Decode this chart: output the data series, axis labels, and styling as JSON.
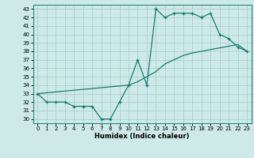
{
  "xlabel": "Humidex (Indice chaleur)",
  "xlim": [
    -0.5,
    23.5
  ],
  "ylim": [
    29.5,
    43.5
  ],
  "yticks": [
    30,
    31,
    32,
    33,
    34,
    35,
    36,
    37,
    38,
    39,
    40,
    41,
    42,
    43
  ],
  "xticks": [
    0,
    1,
    2,
    3,
    4,
    5,
    6,
    7,
    8,
    9,
    10,
    11,
    12,
    13,
    14,
    15,
    16,
    17,
    18,
    19,
    20,
    21,
    22,
    23
  ],
  "line_color": "#1a7a6e",
  "bg_color": "#ceeae8",
  "grid_color": "#a8d0ce",
  "series1_x": [
    0,
    1,
    2,
    3,
    4,
    5,
    6,
    7,
    8,
    9,
    10,
    11,
    12,
    13,
    14,
    15,
    16,
    17,
    18,
    19,
    20,
    21,
    22,
    23
  ],
  "series1_y": [
    33,
    32,
    32,
    32,
    31.5,
    31.5,
    31.5,
    30,
    30,
    32,
    34,
    37,
    34,
    43,
    42,
    42.5,
    42.5,
    42.5,
    42,
    42.5,
    40,
    39.5,
    38.5,
    38
  ],
  "series2_x": [
    0,
    1,
    2,
    3,
    4,
    5,
    6,
    7,
    8,
    9,
    10,
    11,
    12,
    13,
    14,
    15,
    16,
    17,
    18,
    19,
    20,
    21,
    22,
    23
  ],
  "series2_y": [
    33,
    33.1,
    33.2,
    33.3,
    33.4,
    33.5,
    33.6,
    33.7,
    33.8,
    33.9,
    34.0,
    34.4,
    35.0,
    35.6,
    36.5,
    37.0,
    37.5,
    37.8,
    38.0,
    38.2,
    38.4,
    38.6,
    38.8,
    38.0
  ]
}
